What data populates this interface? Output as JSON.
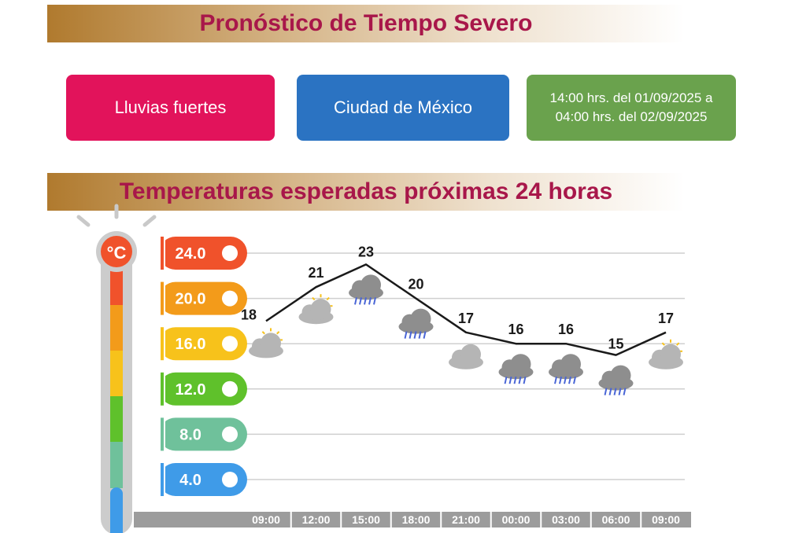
{
  "header": {
    "title": "Pronóstico de Tiempo Severo"
  },
  "cards": {
    "phenomenon": "Lluvias fuertes",
    "location": "Ciudad de México",
    "period": "14:00 hrs. del 01/09/2025 a\n04:00 hrs. del 02/09/2025"
  },
  "chart_data": {
    "type": "line",
    "title": "Temperaturas esperadas próximas 24 horas",
    "unit_label": "°C",
    "ylim": [
      4,
      24
    ],
    "y_ticks": [
      {
        "label": "24.0",
        "value": 24,
        "color": "#f0522b"
      },
      {
        "label": "20.0",
        "value": 20,
        "color": "#f39b1a"
      },
      {
        "label": "16.0",
        "value": 16,
        "color": "#f7c21b"
      },
      {
        "label": "12.0",
        "value": 12,
        "color": "#5fc12b"
      },
      {
        "label": "8.0",
        "value": 8,
        "color": "#6fc19b"
      },
      {
        "label": "4.0",
        "value": 4,
        "color": "#3f9be8"
      }
    ],
    "categories": [
      "09:00",
      "12:00",
      "15:00",
      "18:00",
      "21:00",
      "00:00",
      "03:00",
      "06:00",
      "09:00"
    ],
    "series": [
      {
        "values": [
          18,
          21,
          23,
          20,
          17,
          16,
          16,
          15,
          17
        ]
      }
    ],
    "max_color": "#d8202a",
    "min_color": "#2f5fa8",
    "icons": [
      "partly-cloudy-icon",
      "partly-cloudy-icon",
      "rain-cloud-icon",
      "rain-cloud-icon",
      "cloudy-icon",
      "rain-cloud-icon",
      "rain-cloud-icon",
      "rain-cloud-icon",
      "partly-cloudy-icon"
    ],
    "grid": true
  }
}
